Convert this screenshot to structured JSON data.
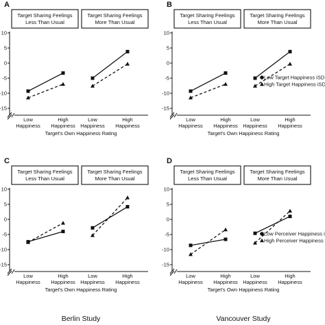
{
  "figure": {
    "study_labels": [
      "Berlin Study",
      "Vancouver Study"
    ]
  },
  "chart_data": [
    {
      "panel": "A",
      "type": "line",
      "facets": [
        "Target Sharing Feelings\nLess Than Usual",
        "Target Sharing Feelings\nMore Than Usual"
      ],
      "categories": [
        "Low\nHappiness",
        "High\nHappiness"
      ],
      "xlabel": "Target's Own Happiness Rating",
      "ylabel": "",
      "ylim": [
        -15,
        10
      ],
      "yticks": [
        10,
        5,
        0,
        -5,
        -10,
        -15
      ],
      "ytick_labels": [
        "10",
        "5",
        "0",
        "-5",
        "-10",
        "-15"
      ],
      "axis_break": true,
      "legend": null,
      "series": [
        {
          "marker": "square",
          "dash": false,
          "facet_values": [
            [
              -9.3,
              -3.3
            ],
            [
              -5.0,
              3.8
            ]
          ]
        },
        {
          "marker": "triangle",
          "dash": true,
          "facet_values": [
            [
              -11.5,
              -7.0
            ],
            [
              -7.6,
              -0.3
            ]
          ]
        }
      ]
    },
    {
      "panel": "B",
      "type": "line",
      "facets": [
        "Target Sharing Feelings\nLess Than Usual",
        "Target Sharing Feelings\nMore Than Usual"
      ],
      "categories": [
        "Low\nHappiness",
        "High\nHappiness"
      ],
      "xlabel": "Target's Own Happiness Rating",
      "ylabel": "",
      "ylim": [
        -15,
        10
      ],
      "yticks": [
        10,
        5,
        0,
        -5,
        -10,
        -15
      ],
      "ytick_labels": [
        "10",
        "5",
        "0",
        "-5",
        "-10",
        "-15"
      ],
      "axis_break": true,
      "legend": {
        "placement": "right",
        "items": [
          {
            "marker": "circle",
            "label": "Low Target Happiness iSD"
          },
          {
            "marker": "triangle",
            "label": "High Target Happiness iSD"
          }
        ]
      },
      "series": [
        {
          "marker": "square",
          "dash": false,
          "facet_values": [
            [
              -9.3,
              -3.3
            ],
            [
              -5.0,
              3.8
            ]
          ]
        },
        {
          "marker": "triangle",
          "dash": true,
          "facet_values": [
            [
              -11.5,
              -7.0
            ],
            [
              -7.6,
              -0.3
            ]
          ]
        }
      ]
    },
    {
      "panel": "C",
      "type": "line",
      "facets": [
        "Target Sharing Feelings\nLess Than Usual",
        "Target Sharing Feelings\nMore Than Usual"
      ],
      "categories": [
        "Low\nHappiness",
        "High\nHappiness"
      ],
      "xlabel": "Target's Own Happiness Rating",
      "ylabel": "",
      "ylim": [
        -15,
        10
      ],
      "yticks": [
        10,
        5,
        0,
        -5,
        -10,
        -15
      ],
      "ytick_labels": [
        "10",
        "5",
        "0",
        "-5",
        "-10",
        "-15"
      ],
      "axis_break": true,
      "legend": null,
      "series": [
        {
          "marker": "square",
          "dash": false,
          "facet_values": [
            [
              -7.4,
              -4.0
            ],
            [
              -2.8,
              4.2
            ]
          ]
        },
        {
          "marker": "triangle",
          "dash": true,
          "facet_values": [
            [
              -7.6,
              -1.2
            ],
            [
              -5.3,
              7.2
            ]
          ]
        }
      ]
    },
    {
      "panel": "D",
      "type": "line",
      "facets": [
        "Target Sharing Feelings\nLess Than Usual",
        "Target Sharing Feelings\nMore Than Usual"
      ],
      "categories": [
        "Low\nHappiness",
        "High\nHappiness"
      ],
      "xlabel": "Target's Own Happiness Rating",
      "ylabel": "",
      "ylim": [
        -15,
        10
      ],
      "yticks": [
        10,
        5,
        0,
        -5,
        -10,
        -15
      ],
      "ytick_labels": [
        "10",
        "5",
        "0",
        "-5",
        "-10",
        "-15"
      ],
      "axis_break": true,
      "legend": {
        "placement": "right",
        "items": [
          {
            "marker": "circle",
            "label": "Low Perceiver Happiness iS"
          },
          {
            "marker": "triangle",
            "label": "High Perceiver Happiness ii"
          }
        ]
      },
      "series": [
        {
          "marker": "square",
          "dash": false,
          "facet_values": [
            [
              -8.6,
              -6.6
            ],
            [
              -4.6,
              1.0
            ]
          ]
        },
        {
          "marker": "triangle",
          "dash": true,
          "facet_values": [
            [
              -11.6,
              -3.4
            ],
            [
              -7.8,
              2.8
            ]
          ]
        }
      ]
    }
  ]
}
